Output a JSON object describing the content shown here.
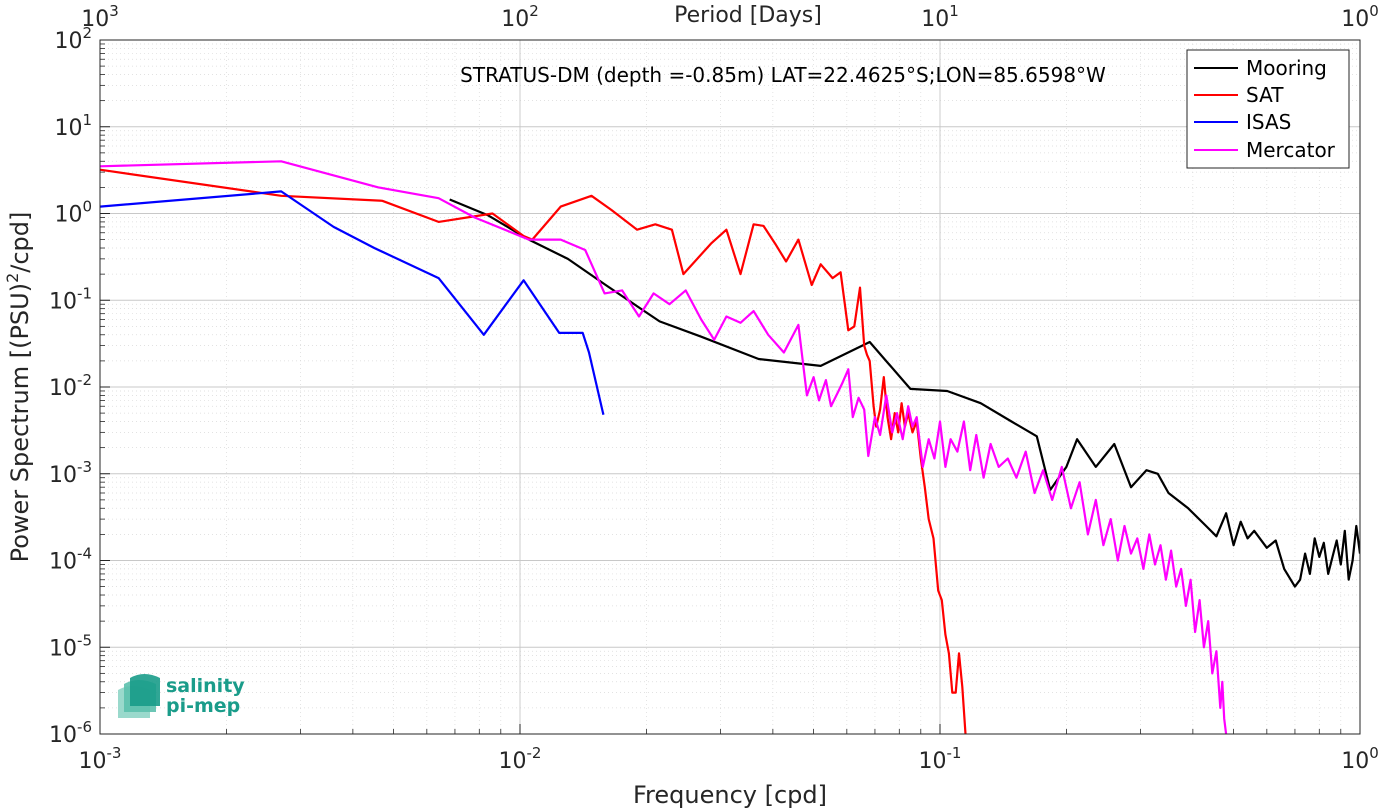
{
  "chart_data": {
    "type": "line",
    "title": "STRATUS-DM (depth =-0.85m) LAT=22.4625°S;LON=85.6598°W",
    "xlabel": "Frequency [cpd]",
    "ylabel_main": "Power Spectrum [(PSU)",
    "ylabel_sup": "2",
    "ylabel_tail": "/cpd]",
    "top_axis_label": "Period [Days]",
    "x_scale": "log",
    "y_scale": "log",
    "xlim": [
      0.001,
      1
    ],
    "ylim": [
      1e-06,
      100
    ],
    "grid": true,
    "legend_position": "top-right",
    "x_ticks": [
      {
        "value": 0.001,
        "base": "10",
        "exp": "-3"
      },
      {
        "value": 0.01,
        "base": "10",
        "exp": "-2"
      },
      {
        "value": 0.1,
        "base": "10",
        "exp": "-1"
      },
      {
        "value": 1,
        "base": "10",
        "exp": "0"
      }
    ],
    "y_ticks": [
      {
        "value": 1e-06,
        "base": "10",
        "exp": "-6"
      },
      {
        "value": 1e-05,
        "base": "10",
        "exp": "-5"
      },
      {
        "value": 0.0001,
        "base": "10",
        "exp": "-4"
      },
      {
        "value": 0.001,
        "base": "10",
        "exp": "-3"
      },
      {
        "value": 0.01,
        "base": "10",
        "exp": "-2"
      },
      {
        "value": 0.1,
        "base": "10",
        "exp": "-1"
      },
      {
        "value": 1,
        "base": "10",
        "exp": "0"
      },
      {
        "value": 10,
        "base": "10",
        "exp": "1"
      },
      {
        "value": 100,
        "base": "10",
        "exp": "2"
      }
    ],
    "top_ticks": [
      {
        "period": 1000,
        "base": "10",
        "exp": "3"
      },
      {
        "period": 100,
        "base": "10",
        "exp": "2"
      },
      {
        "period": 10,
        "base": "10",
        "exp": "1"
      },
      {
        "period": 1,
        "base": "10",
        "exp": "0"
      }
    ],
    "series": [
      {
        "name": "Mooring",
        "color": "#000000",
        "points": [
          [
            0.0068,
            1.45
          ],
          [
            0.0084,
            0.95
          ],
          [
            0.0105,
            0.5
          ],
          [
            0.013,
            0.3
          ],
          [
            0.016,
            0.15
          ],
          [
            0.0215,
            0.057
          ],
          [
            0.027,
            0.038
          ],
          [
            0.037,
            0.021
          ],
          [
            0.052,
            0.0175
          ],
          [
            0.068,
            0.033
          ],
          [
            0.085,
            0.0095
          ],
          [
            0.104,
            0.009
          ],
          [
            0.125,
            0.0065
          ],
          [
            0.148,
            0.004
          ],
          [
            0.17,
            0.0027
          ],
          [
            0.183,
            0.00065
          ],
          [
            0.2,
            0.0012
          ],
          [
            0.212,
            0.0025
          ],
          [
            0.235,
            0.0012
          ],
          [
            0.26,
            0.0022
          ],
          [
            0.285,
            0.0007
          ],
          [
            0.31,
            0.0011
          ],
          [
            0.33,
            0.001
          ],
          [
            0.35,
            0.0006
          ],
          [
            0.39,
            0.0004
          ],
          [
            0.43,
            0.00025
          ],
          [
            0.455,
            0.00019
          ],
          [
            0.48,
            0.00035
          ],
          [
            0.5,
            0.00015
          ],
          [
            0.52,
            0.00028
          ],
          [
            0.54,
            0.00018
          ],
          [
            0.56,
            0.00022
          ],
          [
            0.6,
            0.00014
          ],
          [
            0.63,
            0.00017
          ],
          [
            0.66,
            8e-05
          ],
          [
            0.7,
            5e-05
          ],
          [
            0.72,
            6e-05
          ],
          [
            0.74,
            0.00012
          ],
          [
            0.76,
            7e-05
          ],
          [
            0.78,
            0.00018
          ],
          [
            0.8,
            0.00011
          ],
          [
            0.82,
            0.00016
          ],
          [
            0.84,
            7e-05
          ],
          [
            0.86,
            0.00011
          ],
          [
            0.88,
            0.00017
          ],
          [
            0.9,
            9e-05
          ],
          [
            0.92,
            0.00022
          ],
          [
            0.94,
            6e-05
          ],
          [
            0.96,
            0.0001
          ],
          [
            0.98,
            0.00025
          ],
          [
            1.0,
            0.00012
          ]
        ]
      },
      {
        "name": "SAT",
        "color": "#ff0000",
        "points": [
          [
            0.001,
            3.2
          ],
          [
            0.0027,
            1.6
          ],
          [
            0.0047,
            1.4
          ],
          [
            0.0064,
            0.8
          ],
          [
            0.0086,
            1.0
          ],
          [
            0.0102,
            0.55
          ],
          [
            0.0107,
            0.5
          ],
          [
            0.0125,
            1.2
          ],
          [
            0.0148,
            1.6
          ],
          [
            0.0165,
            1.1
          ],
          [
            0.019,
            0.65
          ],
          [
            0.021,
            0.75
          ],
          [
            0.023,
            0.65
          ],
          [
            0.0245,
            0.2
          ],
          [
            0.0285,
            0.45
          ],
          [
            0.031,
            0.65
          ],
          [
            0.0335,
            0.2
          ],
          [
            0.036,
            0.75
          ],
          [
            0.038,
            0.72
          ],
          [
            0.0405,
            0.45
          ],
          [
            0.043,
            0.28
          ],
          [
            0.046,
            0.5
          ],
          [
            0.0495,
            0.15
          ],
          [
            0.052,
            0.26
          ],
          [
            0.0555,
            0.18
          ],
          [
            0.058,
            0.21
          ],
          [
            0.0605,
            0.045
          ],
          [
            0.0625,
            0.05
          ],
          [
            0.0645,
            0.14
          ],
          [
            0.066,
            0.03
          ],
          [
            0.067,
            0.0235
          ],
          [
            0.068,
            0.02
          ],
          [
            0.0695,
            0.006
          ],
          [
            0.0705,
            0.0035
          ],
          [
            0.072,
            0.0055
          ],
          [
            0.0735,
            0.013
          ],
          [
            0.075,
            0.0045
          ],
          [
            0.0765,
            0.0025
          ],
          [
            0.078,
            0.005
          ],
          [
            0.0795,
            0.003
          ],
          [
            0.081,
            0.0065
          ],
          [
            0.0825,
            0.0035
          ],
          [
            0.084,
            0.005
          ],
          [
            0.086,
            0.003
          ],
          [
            0.088,
            0.004
          ],
          [
            0.09,
            0.0015
          ],
          [
            0.092,
            0.0007
          ],
          [
            0.094,
            0.0003
          ],
          [
            0.0965,
            0.00018
          ],
          [
            0.099,
            4.5e-05
          ],
          [
            0.101,
            3.5e-05
          ],
          [
            0.103,
            1.4e-05
          ],
          [
            0.105,
            8.5e-06
          ],
          [
            0.107,
            3e-06
          ],
          [
            0.109,
            3e-06
          ],
          [
            0.111,
            8.5e-06
          ],
          [
            0.113,
            3.5e-06
          ],
          [
            0.115,
            1e-06
          ]
        ]
      },
      {
        "name": "ISAS",
        "color": "#0000ff",
        "points": [
          [
            0.001,
            1.2
          ],
          [
            0.0027,
            1.8
          ],
          [
            0.0036,
            0.7
          ],
          [
            0.0045,
            0.4
          ],
          [
            0.0064,
            0.18
          ],
          [
            0.0082,
            0.04
          ],
          [
            0.0102,
            0.17
          ],
          [
            0.0124,
            0.042
          ],
          [
            0.0141,
            0.042
          ],
          [
            0.0146,
            0.025
          ],
          [
            0.0158,
            0.0048
          ]
        ]
      },
      {
        "name": "Mercator",
        "color": "#ff00ff",
        "points": [
          [
            0.001,
            3.5
          ],
          [
            0.0027,
            4.0
          ],
          [
            0.0046,
            2.0
          ],
          [
            0.0064,
            1.5
          ],
          [
            0.0078,
            0.9
          ],
          [
            0.0105,
            0.5
          ],
          [
            0.0125,
            0.5
          ],
          [
            0.0143,
            0.38
          ],
          [
            0.0159,
            0.12
          ],
          [
            0.0175,
            0.13
          ],
          [
            0.0192,
            0.065
          ],
          [
            0.0208,
            0.12
          ],
          [
            0.0227,
            0.09
          ],
          [
            0.0248,
            0.13
          ],
          [
            0.027,
            0.06
          ],
          [
            0.029,
            0.035
          ],
          [
            0.031,
            0.065
          ],
          [
            0.0335,
            0.055
          ],
          [
            0.036,
            0.075
          ],
          [
            0.039,
            0.04
          ],
          [
            0.0425,
            0.025
          ],
          [
            0.046,
            0.052
          ],
          [
            0.0482,
            0.008
          ],
          [
            0.05,
            0.013
          ],
          [
            0.0515,
            0.007
          ],
          [
            0.0535,
            0.012
          ],
          [
            0.055,
            0.006
          ],
          [
            0.057,
            0.0085
          ],
          [
            0.0585,
            0.011
          ],
          [
            0.0605,
            0.016
          ],
          [
            0.062,
            0.0045
          ],
          [
            0.064,
            0.0075
          ],
          [
            0.066,
            0.0055
          ],
          [
            0.0675,
            0.0016
          ],
          [
            0.07,
            0.0045
          ],
          [
            0.072,
            0.0028
          ],
          [
            0.0745,
            0.008
          ],
          [
            0.077,
            0.003
          ],
          [
            0.079,
            0.005
          ],
          [
            0.0815,
            0.0025
          ],
          [
            0.084,
            0.006
          ],
          [
            0.086,
            0.0035
          ],
          [
            0.088,
            0.0045
          ],
          [
            0.091,
            0.0012
          ],
          [
            0.094,
            0.0025
          ],
          [
            0.097,
            0.0015
          ],
          [
            0.1,
            0.004
          ],
          [
            0.103,
            0.0012
          ],
          [
            0.106,
            0.0025
          ],
          [
            0.11,
            0.0018
          ],
          [
            0.114,
            0.004
          ],
          [
            0.118,
            0.0011
          ],
          [
            0.122,
            0.0028
          ],
          [
            0.127,
            0.0009
          ],
          [
            0.132,
            0.0022
          ],
          [
            0.138,
            0.0012
          ],
          [
            0.145,
            0.0015
          ],
          [
            0.152,
            0.0009
          ],
          [
            0.16,
            0.0018
          ],
          [
            0.168,
            0.0006
          ],
          [
            0.176,
            0.0011
          ],
          [
            0.185,
            0.0005
          ],
          [
            0.195,
            0.0012
          ],
          [
            0.205,
            0.0004
          ],
          [
            0.215,
            0.0008
          ],
          [
            0.225,
            0.0002
          ],
          [
            0.235,
            0.0005
          ],
          [
            0.245,
            0.00015
          ],
          [
            0.255,
            0.0003
          ],
          [
            0.265,
            0.0001
          ],
          [
            0.275,
            0.00025
          ],
          [
            0.285,
            0.00012
          ],
          [
            0.295,
            0.00018
          ],
          [
            0.305,
            8e-05
          ],
          [
            0.315,
            0.0002
          ],
          [
            0.325,
            9e-05
          ],
          [
            0.335,
            0.00015
          ],
          [
            0.345,
            6e-05
          ],
          [
            0.355,
            0.00013
          ],
          [
            0.365,
            5e-05
          ],
          [
            0.375,
            8e-05
          ],
          [
            0.385,
            3e-05
          ],
          [
            0.395,
            6e-05
          ],
          [
            0.405,
            1.5e-05
          ],
          [
            0.415,
            3.5e-05
          ],
          [
            0.425,
            1e-05
          ],
          [
            0.435,
            2e-05
          ],
          [
            0.445,
            5e-06
          ],
          [
            0.455,
            9e-06
          ],
          [
            0.465,
            2e-06
          ],
          [
            0.47,
            4e-06
          ],
          [
            0.475,
            1.5e-06
          ],
          [
            0.48,
            1e-06
          ]
        ]
      }
    ],
    "logo": {
      "line1": "salinity",
      "line2": "pi-mep",
      "color": "#1a9c8a"
    }
  }
}
